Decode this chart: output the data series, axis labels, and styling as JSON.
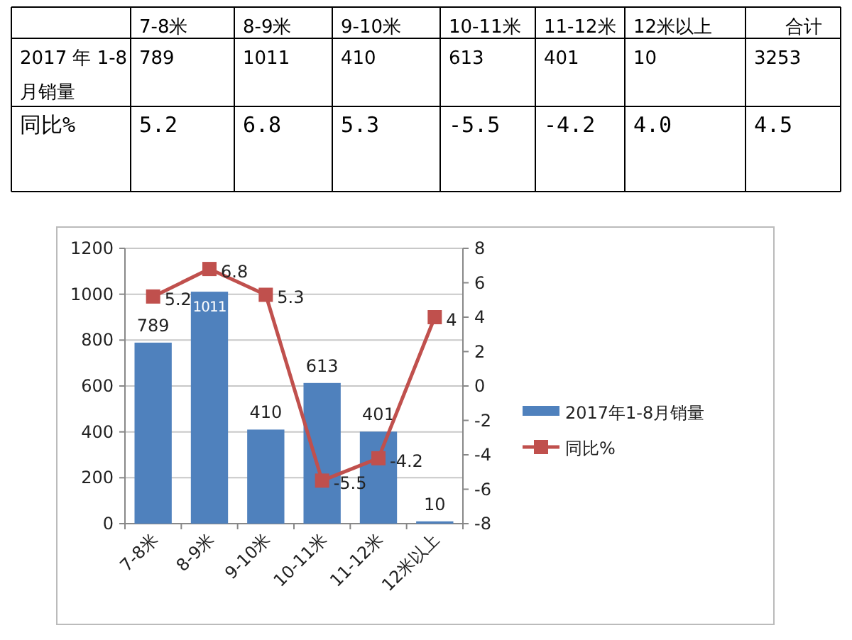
{
  "chart_data": [
    {
      "type": "other",
      "annotations": [
        "7-8米",
        "8-9米",
        "9-10米",
        "10-11米",
        "11-12米",
        "12米以上",
        "合计",
        "2017 年 1-8 月销量",
        "789",
        "1011",
        "410",
        "613",
        "401",
        "10",
        "3253",
        "同比%",
        "5.2",
        "6.8",
        "5.3",
        "-5.5",
        "-4.2",
        "4.0",
        "4.5"
      ]
    },
    {
      "type": "bar",
      "categories": [
        "7-8米",
        "8-9米",
        "9-10米",
        "10-11米",
        "11-12米",
        "12米以上"
      ],
      "series": [
        {
          "name": "2017年1-8月销量",
          "type": "bar",
          "color": "#4f81bd",
          "values": [
            789,
            1011,
            410,
            613,
            401,
            10
          ]
        },
        {
          "name": "同比%",
          "type": "line",
          "axis": "y2",
          "color": "#c0504d",
          "marker": "square",
          "values": [
            5.2,
            6.8,
            5.3,
            -5.5,
            -4.2,
            4
          ]
        }
      ],
      "ylim": [
        0,
        1200
      ],
      "yticks": [
        0,
        200,
        400,
        600,
        800,
        1000,
        1200
      ],
      "y2lim": [
        -8,
        8
      ],
      "y2ticks": [
        -8,
        -6,
        -4,
        -2,
        0,
        2,
        4,
        6,
        8
      ],
      "grid": "y",
      "legend": "right",
      "data_labels": true
    }
  ]
}
